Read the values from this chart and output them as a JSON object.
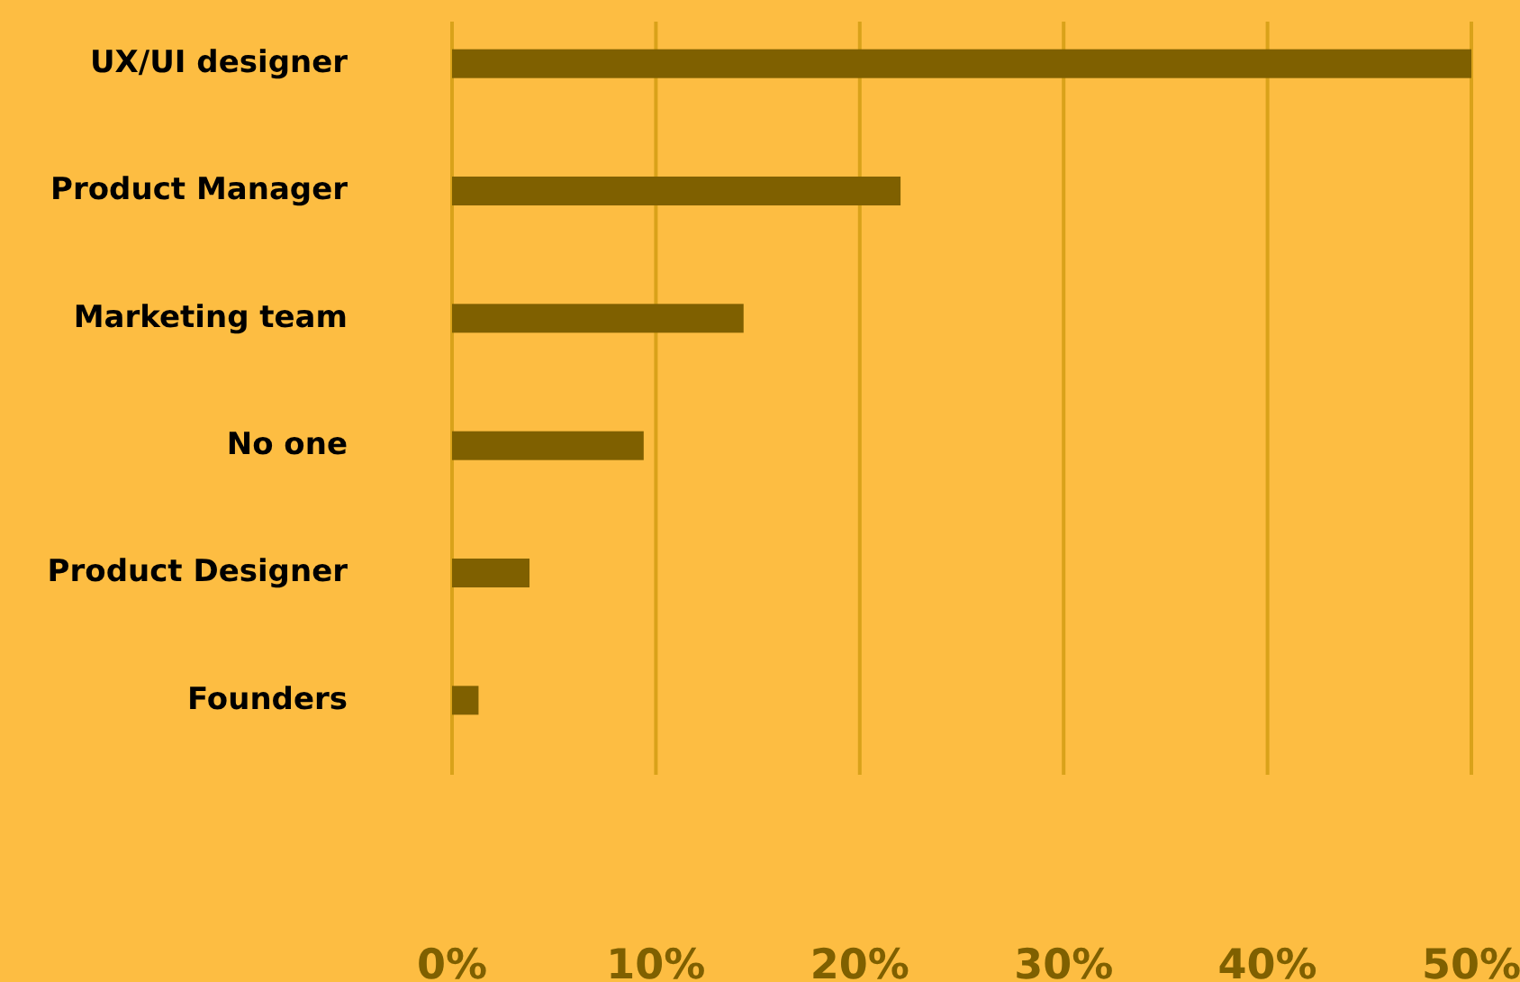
{
  "chart_data": {
    "type": "bar",
    "orientation": "horizontal",
    "categories": [
      "UX/UI designer",
      "Product Manager",
      "Marketing team",
      "No one",
      "Product Designer",
      "Founders"
    ],
    "values": [
      50,
      22,
      14.3,
      9.4,
      3.8,
      1.3
    ],
    "color": "#7f6000",
    "xlim": [
      0,
      50
    ],
    "xticks": [
      {
        "value": 0,
        "label": "0%"
      },
      {
        "value": 10,
        "label": "10%"
      },
      {
        "value": 20,
        "label": "20%"
      },
      {
        "value": 30,
        "label": "30%"
      },
      {
        "value": 40,
        "label": "40%"
      },
      {
        "value": 50,
        "label": "50%"
      }
    ],
    "grid": "x"
  }
}
